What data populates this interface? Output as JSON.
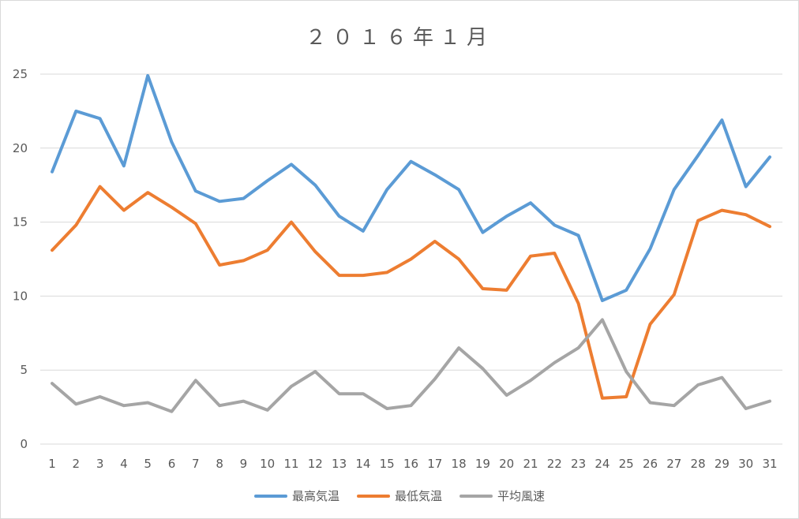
{
  "chart_data": {
    "type": "line",
    "title": "２０１６年１月",
    "xlabel": "",
    "ylabel": "",
    "ylim": [
      0,
      25
    ],
    "yticks": [
      0,
      5,
      10,
      15,
      20,
      25
    ],
    "grid": true,
    "legend_position": "bottom",
    "categories": [
      "1",
      "2",
      "3",
      "4",
      "5",
      "6",
      "7",
      "8",
      "9",
      "10",
      "11",
      "12",
      "13",
      "14",
      "15",
      "16",
      "17",
      "18",
      "19",
      "20",
      "21",
      "22",
      "23",
      "24",
      "25",
      "26",
      "27",
      "28",
      "29",
      "30",
      "31"
    ],
    "series": [
      {
        "name": "最高気温",
        "color": "#5b9bd5",
        "values": [
          18.4,
          22.5,
          22.0,
          18.8,
          24.9,
          20.4,
          17.1,
          16.4,
          16.6,
          17.8,
          18.9,
          17.5,
          15.4,
          14.4,
          17.2,
          19.1,
          18.2,
          17.2,
          14.3,
          15.4,
          16.3,
          14.8,
          14.1,
          9.7,
          10.4,
          13.2,
          17.2,
          19.5,
          21.9,
          17.4,
          19.4
        ]
      },
      {
        "name": "最低気温",
        "color": "#ed7d31",
        "values": [
          13.1,
          14.8,
          17.4,
          15.8,
          17.0,
          16.0,
          14.9,
          12.1,
          12.4,
          13.1,
          15.0,
          13.0,
          11.4,
          11.4,
          11.6,
          12.5,
          13.7,
          12.5,
          10.5,
          10.4,
          12.7,
          12.9,
          9.5,
          3.1,
          3.2,
          8.1,
          10.1,
          15.1,
          15.8,
          15.5,
          14.7
        ]
      },
      {
        "name": "平均風速",
        "color": "#a5a5a5",
        "values": [
          4.1,
          2.7,
          3.2,
          2.6,
          2.8,
          2.2,
          4.3,
          2.6,
          2.9,
          2.3,
          3.9,
          4.9,
          3.4,
          3.4,
          2.4,
          2.6,
          4.4,
          6.5,
          5.1,
          3.3,
          4.3,
          5.5,
          6.5,
          8.4,
          4.9,
          2.8,
          2.6,
          4.0,
          4.5,
          2.4,
          2.9
        ]
      }
    ]
  }
}
